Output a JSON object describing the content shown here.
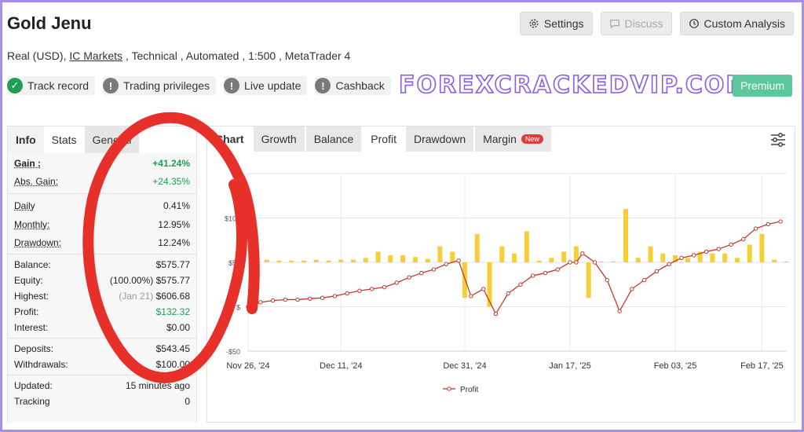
{
  "header": {
    "title": "Gold Jenu",
    "account_type": "Real (USD),",
    "broker": "IC Markets",
    "details": ", Technical , Automated , 1:500 , MetaTrader 4"
  },
  "top_buttons": {
    "settings": "Settings",
    "discuss": "Discuss",
    "custom_analysis": "Custom Analysis"
  },
  "badges": [
    {
      "label": "Track record",
      "icon": "check-icon",
      "status": "verified"
    },
    {
      "label": "Trading privileges",
      "icon": "exclamation-icon",
      "status": "unverified"
    },
    {
      "label": "Live update",
      "icon": "exclamation-icon",
      "status": "unverified"
    },
    {
      "label": "Cashback",
      "icon": "exclamation-icon",
      "status": "unverified"
    }
  ],
  "watermark": "FOREXCRACKEDVIP.COM",
  "premium_label": "Premium",
  "left_tabs": [
    "Info",
    "Stats",
    "General"
  ],
  "stats": {
    "gain_label": "Gain :",
    "gain": "+41.24%",
    "abs_gain_label": "Abs. Gain:",
    "abs_gain": "+24.35%",
    "daily_label": "Daily",
    "daily": "0.41%",
    "monthly_label": "Monthly:",
    "monthly": "12.95%",
    "drawdown_label": "Drawdown:",
    "drawdown": "12.24%",
    "balance_label": "Balance:",
    "balance": "$575.77",
    "equity_label": "Equity:",
    "equity_pct": "(100.00%)",
    "equity": "$575.77",
    "highest_label": "Highest:",
    "highest_date": "(Jan 21)",
    "highest": "$606.68",
    "profit_label": "Profit:",
    "profit": "$132.32",
    "interest_label": "Interest:",
    "interest": "$0.00",
    "deposits_label": "Deposits:",
    "deposits": "$543.45",
    "withdrawals_label": "Withdrawals:",
    "withdrawals": "$100.00",
    "updated_label": "Updated:",
    "updated": "15 minutes ago",
    "tracking_label": "Tracking",
    "tracking": "0"
  },
  "chart_tabs": {
    "chart": "Chart",
    "growth": "Growth",
    "balance": "Balance",
    "profit": "Profit",
    "drawdown": "Drawdown",
    "margin": "Margin",
    "new_badge": "New"
  },
  "colors": {
    "line": "#c0392b",
    "bars": "#f5c518",
    "annotation": "#e8302a",
    "premium": "#5cc79a",
    "watermark": "#8a5ce8"
  },
  "chart_data": {
    "type": "line",
    "yticks": [
      "$",
      "$100",
      "$50",
      "$",
      "-$50"
    ],
    "ytick_values": [
      150,
      100,
      50,
      0,
      -50
    ],
    "ylim": [
      -50,
      150
    ],
    "xtick_labels": [
      "Nov 26, '24",
      "Dec 11, '24",
      "Dec 31, '24",
      "Jan 17, '25",
      "Feb 03, '25",
      "Feb 17, '25"
    ],
    "xtick_positions": [
      0,
      15,
      35,
      52,
      69,
      83
    ],
    "x_range": [
      0,
      87
    ],
    "legend": "Profit",
    "series": [
      {
        "name": "Profit",
        "kind": "line",
        "x": [
          0,
          2,
          4,
          6,
          8,
          10,
          12,
          14,
          16,
          18,
          20,
          22,
          24,
          26,
          28,
          30,
          32,
          34,
          36,
          38,
          40,
          42,
          44,
          46,
          48,
          50,
          52,
          53,
          54,
          56,
          58,
          60,
          62,
          64,
          66,
          68,
          70,
          72,
          74,
          76,
          78,
          80,
          82,
          84,
          86
        ],
        "y": [
          0,
          5,
          7,
          8,
          8,
          9,
          10,
          12,
          15,
          18,
          20,
          22,
          27,
          33,
          38,
          42,
          48,
          52,
          12,
          20,
          -8,
          15,
          25,
          35,
          38,
          42,
          50,
          50,
          60,
          50,
          30,
          -5,
          20,
          30,
          40,
          48,
          55,
          58,
          62,
          65,
          70,
          76,
          88,
          93,
          96
        ]
      },
      {
        "name": "Daily",
        "kind": "bar",
        "x": [
          1,
          3,
          5,
          7,
          9,
          11,
          13,
          15,
          17,
          19,
          21,
          23,
          25,
          27,
          29,
          31,
          33,
          35,
          37,
          39,
          41,
          43,
          45,
          47,
          49,
          51,
          53,
          55,
          57,
          59,
          61,
          63,
          65,
          67,
          69,
          71,
          73,
          75,
          77,
          79,
          81,
          83,
          85,
          87
        ],
        "y": [
          2,
          3,
          2,
          2,
          2,
          3,
          2,
          3,
          3,
          5,
          12,
          8,
          8,
          6,
          4,
          18,
          12,
          -40,
          32,
          -50,
          18,
          10,
          35,
          2,
          5,
          12,
          18,
          -40,
          1,
          1,
          60,
          5,
          18,
          10,
          8,
          5,
          12,
          10,
          10,
          5,
          20,
          32,
          3,
          1
        ]
      }
    ]
  }
}
